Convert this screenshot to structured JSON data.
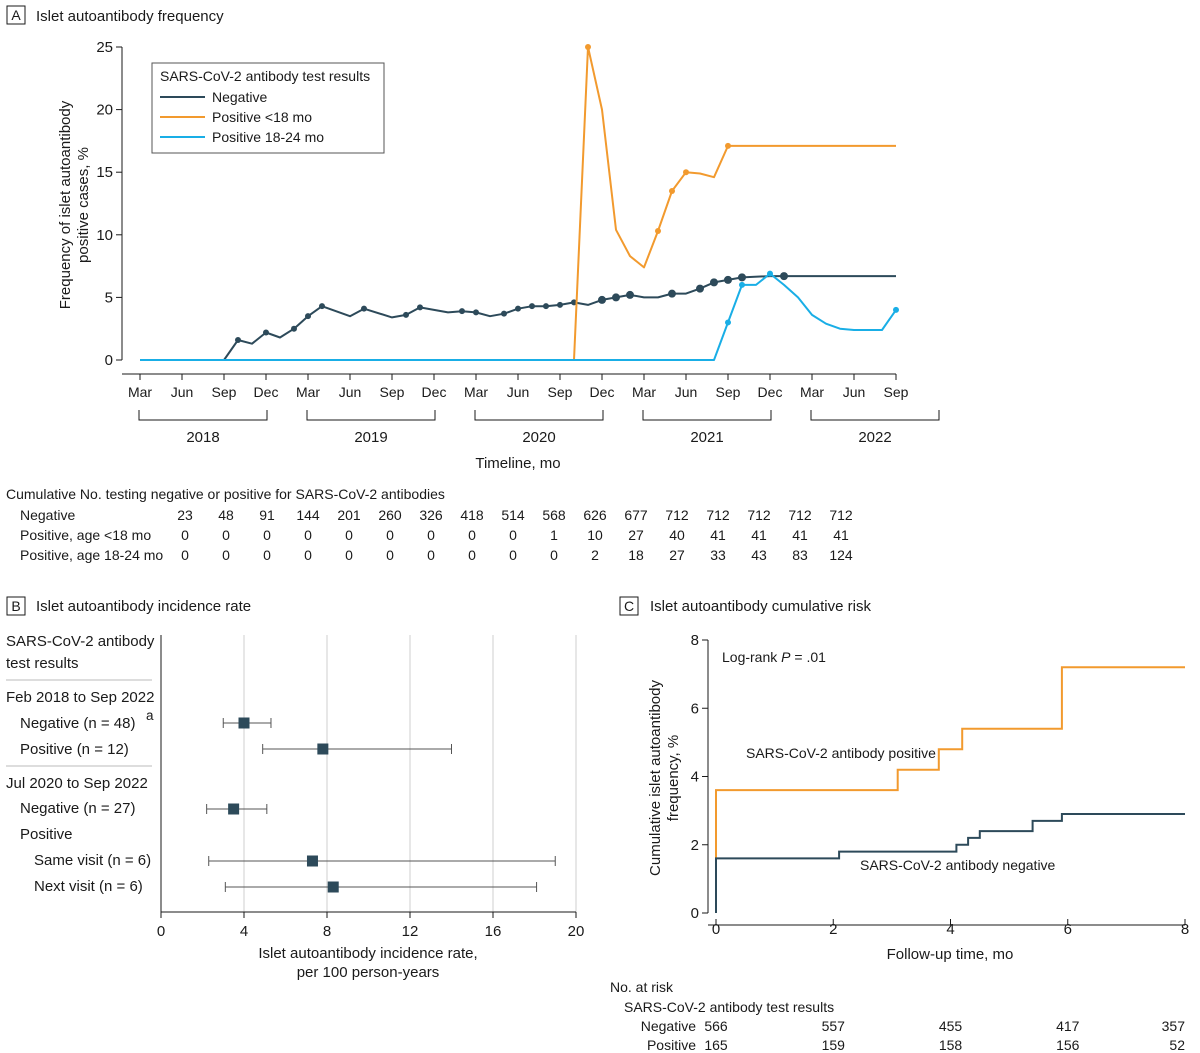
{
  "colors": {
    "negative": "#2d4a5a",
    "pos_lt18": "#f29a2e",
    "pos_18_24": "#19aee6",
    "grid": "#cfcfcf"
  },
  "panel_a": {
    "letter": "A",
    "title": "Islet autoantibody frequency",
    "ylabel": [
      "Frequency of islet autoantibody",
      "positive cases, %"
    ],
    "xlabel": "Timeline, mo",
    "legend_title": "SARS-CoV-2 antibody test results",
    "month_ticks": [
      "Mar",
      "Jun",
      "Sep",
      "Dec",
      "Mar",
      "Jun",
      "Sep",
      "Dec",
      "Mar",
      "Jun",
      "Sep",
      "Dec",
      "Mar",
      "Jun",
      "Sep",
      "Dec",
      "Mar",
      "Jun",
      "Sep"
    ],
    "years": [
      "2018",
      "2019",
      "2020",
      "2021",
      "2022"
    ]
  },
  "chart_data": [
    {
      "type": "line",
      "title": "Islet autoantibody frequency",
      "xlabel": "Timeline, mo",
      "ylabel": "Frequency of islet autoantibody positive cases, %",
      "ylim": [
        0,
        25
      ],
      "yticks": [
        0,
        5,
        10,
        15,
        20,
        25
      ],
      "x_unit": "months since Jan 2018",
      "xlim": [
        2,
        56
      ],
      "series": [
        {
          "name": "Negative",
          "color_key": "negative",
          "points": [
            [
              2,
              0
            ],
            [
              8,
              0
            ],
            [
              9,
              1.6
            ],
            [
              10,
              1.3
            ],
            [
              11,
              2.2
            ],
            [
              12,
              1.8
            ],
            [
              13,
              2.5
            ],
            [
              14,
              3.5
            ],
            [
              15,
              4.3
            ],
            [
              17,
              3.5
            ],
            [
              18,
              4.1
            ],
            [
              20,
              3.4
            ],
            [
              21,
              3.6
            ],
            [
              22,
              4.2
            ],
            [
              24,
              3.8
            ],
            [
              25,
              3.9
            ],
            [
              26,
              3.8
            ],
            [
              27,
              3.5
            ],
            [
              28,
              3.7
            ],
            [
              29,
              4.1
            ],
            [
              30,
              4.3
            ],
            [
              31,
              4.3
            ],
            [
              32,
              4.4
            ],
            [
              33,
              4.6
            ],
            [
              34,
              4.4
            ],
            [
              35,
              4.8
            ],
            [
              36,
              5.0
            ],
            [
              37,
              5.2
            ],
            [
              38,
              5.0
            ],
            [
              39,
              5.0
            ],
            [
              40,
              5.3
            ],
            [
              41,
              5.3
            ],
            [
              42,
              5.7
            ],
            [
              43,
              6.2
            ],
            [
              44,
              6.4
            ],
            [
              45,
              6.6
            ],
            [
              47,
              6.7
            ],
            [
              48,
              6.7
            ],
            [
              56,
              6.7
            ]
          ],
          "markers": [
            [
              9,
              1.6
            ],
            [
              11,
              2.2
            ],
            [
              13,
              2.5
            ],
            [
              14,
              3.5
            ],
            [
              15,
              4.3
            ],
            [
              18,
              4.1
            ],
            [
              21,
              3.6
            ],
            [
              22,
              4.2
            ],
            [
              25,
              3.9
            ],
            [
              26,
              3.8
            ],
            [
              28,
              3.7
            ],
            [
              29,
              4.1
            ],
            [
              30,
              4.3
            ],
            [
              31,
              4.3
            ],
            [
              32,
              4.4
            ],
            [
              33,
              4.6
            ],
            [
              35,
              4.8
            ],
            [
              36,
              5.0
            ],
            [
              37,
              5.2
            ],
            [
              40,
              5.3
            ],
            [
              42,
              5.7
            ],
            [
              43,
              6.2
            ],
            [
              44,
              6.4
            ],
            [
              45,
              6.6
            ],
            [
              48,
              6.7
            ]
          ]
        },
        {
          "name": "Positive <18 mo",
          "color_key": "pos_lt18",
          "points": [
            [
              2,
              0
            ],
            [
              33,
              0
            ],
            [
              34,
              25
            ],
            [
              35,
              20
            ],
            [
              36,
              10.4
            ],
            [
              37,
              8.3
            ],
            [
              38,
              7.4
            ],
            [
              39,
              10.3
            ],
            [
              40,
              13.5
            ],
            [
              41,
              15.0
            ],
            [
              42,
              14.9
            ],
            [
              43,
              14.6
            ],
            [
              44,
              17.1
            ],
            [
              56,
              17.1
            ]
          ],
          "markers": [
            [
              34,
              25
            ],
            [
              39,
              10.3
            ],
            [
              40,
              13.5
            ],
            [
              41,
              15.0
            ],
            [
              44,
              17.1
            ]
          ]
        },
        {
          "name": "Positive 18-24 mo",
          "color_key": "pos_18_24",
          "points": [
            [
              2,
              0
            ],
            [
              43,
              0
            ],
            [
              44,
              3.0
            ],
            [
              45,
              6.0
            ],
            [
              46,
              6.0
            ],
            [
              47,
              6.9
            ],
            [
              48,
              6.0
            ],
            [
              49,
              5.0
            ],
            [
              50,
              3.6
            ],
            [
              51,
              2.9
            ],
            [
              52,
              2.5
            ],
            [
              53,
              2.4
            ],
            [
              54,
              2.4
            ],
            [
              55,
              2.4
            ],
            [
              56,
              4.0
            ]
          ],
          "markers": [
            [
              44,
              3.0
            ],
            [
              45,
              6.0
            ],
            [
              47,
              6.9
            ],
            [
              56,
              4.0
            ]
          ]
        }
      ]
    },
    {
      "type": "forest",
      "title": "Islet autoantibody incidence rate",
      "xlabel": "Islet autoantibody incidence rate, per 100 person-years",
      "xlim": [
        0,
        20
      ],
      "xticks": [
        0,
        4,
        8,
        12,
        16,
        20
      ],
      "rows": [
        {
          "label": "Negative (n = 48)",
          "sup": "a",
          "est": 4.0,
          "lo": 3.0,
          "hi": 5.3
        },
        {
          "label": "Positive (n = 12)",
          "est": 7.8,
          "lo": 4.9,
          "hi": 14.0
        },
        {
          "label": "Negative (n = 27)",
          "est": 3.5,
          "lo": 2.2,
          "hi": 5.1
        },
        {
          "label": "Same visit (n = 6)",
          "est": 7.3,
          "lo": 2.3,
          "hi": 19.0
        },
        {
          "label": "Next visit (n = 6)",
          "est": 8.3,
          "lo": 3.1,
          "hi": 18.1
        }
      ]
    },
    {
      "type": "step",
      "title": "Islet autoantibody cumulative risk",
      "xlabel": "Follow-up time, mo",
      "ylabel": "Cumulative islet autoantibody frequency, %",
      "xlim": [
        0,
        8
      ],
      "ylim": [
        0,
        8
      ],
      "xticks": [
        0,
        2,
        4,
        6,
        8
      ],
      "yticks": [
        0,
        2,
        4,
        6,
        8
      ],
      "annotation": "Log-rank P = .01",
      "series": [
        {
          "name": "SARS-CoV-2 antibody positive",
          "color_key": "pos_lt18",
          "steps": [
            [
              0,
              0
            ],
            [
              0,
              3.6
            ],
            [
              3.1,
              3.6
            ],
            [
              3.1,
              4.2
            ],
            [
              3.8,
              4.2
            ],
            [
              3.8,
              4.8
            ],
            [
              4.2,
              4.8
            ],
            [
              4.2,
              5.4
            ],
            [
              5.9,
              5.4
            ],
            [
              5.9,
              7.2
            ],
            [
              8,
              7.2
            ]
          ]
        },
        {
          "name": "SARS-CoV-2 antibody negative",
          "color_key": "negative",
          "steps": [
            [
              0,
              0
            ],
            [
              0,
              1.6
            ],
            [
              2.1,
              1.6
            ],
            [
              2.1,
              1.8
            ],
            [
              4.1,
              1.8
            ],
            [
              4.1,
              2.0
            ],
            [
              4.3,
              2.0
            ],
            [
              4.3,
              2.2
            ],
            [
              4.5,
              2.2
            ],
            [
              4.5,
              2.4
            ],
            [
              5.4,
              2.4
            ],
            [
              5.4,
              2.7
            ],
            [
              5.9,
              2.7
            ],
            [
              5.9,
              2.9
            ],
            [
              8,
              2.9
            ]
          ]
        }
      ]
    }
  ],
  "table_a": {
    "header": "Cumulative No. testing negative or positive for SARS-CoV-2 antibodies",
    "rows": [
      {
        "label": "Negative",
        "values": [
          "23",
          "48",
          "91",
          "144",
          "201",
          "260",
          "326",
          "418",
          "514",
          "568",
          "626",
          "677",
          "712",
          "712",
          "712",
          "712",
          "712"
        ]
      },
      {
        "label": "Positive, age <18 mo",
        "values": [
          "0",
          "0",
          "0",
          "0",
          "0",
          "0",
          "0",
          "0",
          "0",
          "1",
          "10",
          "27",
          "40",
          "41",
          "41",
          "41",
          "41"
        ]
      },
      {
        "label": "Positive, age 18-24 mo",
        "values": [
          "0",
          "0",
          "0",
          "0",
          "0",
          "0",
          "0",
          "0",
          "0",
          "0",
          "2",
          "18",
          "27",
          "33",
          "43",
          "83",
          "124"
        ]
      }
    ]
  },
  "panel_b": {
    "letter": "B",
    "title": "Islet autoantibody incidence rate",
    "header": [
      "SARS-CoV-2 antibody",
      "test results"
    ],
    "section1": "Feb 2018 to Sep 2022",
    "section2": "Jul 2020 to Sep 2022",
    "positive_label": "Positive",
    "row_labels": [
      "Negative (n = 48)",
      "Positive (n = 12)",
      "Negative (n = 27)",
      "Same visit (n = 6)",
      "Next visit (n = 6)"
    ],
    "sup": "a",
    "xlabel": [
      "Islet autoantibody incidence rate,",
      "per 100 person-years"
    ]
  },
  "panel_c": {
    "letter": "C",
    "title": "Islet autoantibody cumulative risk",
    "annotation_prefix": "Log-rank ",
    "annotation_p": "P",
    "annotation_suffix": " = .01",
    "ylabel": [
      "Cumulative islet autoantibody",
      "frequency, %"
    ],
    "xlabel": "Follow-up time, mo",
    "label_positive": "SARS-CoV-2 antibody positive",
    "label_negative": "SARS-CoV-2 antibody negative",
    "risk_header": "No. at risk",
    "risk_subheader": "SARS-CoV-2 antibody test results",
    "risk_rows": [
      {
        "label": "Negative",
        "values": [
          "566",
          "557",
          "455",
          "417",
          "357"
        ]
      },
      {
        "label": "Positive",
        "values": [
          "165",
          "159",
          "158",
          "156",
          "52"
        ]
      }
    ]
  }
}
